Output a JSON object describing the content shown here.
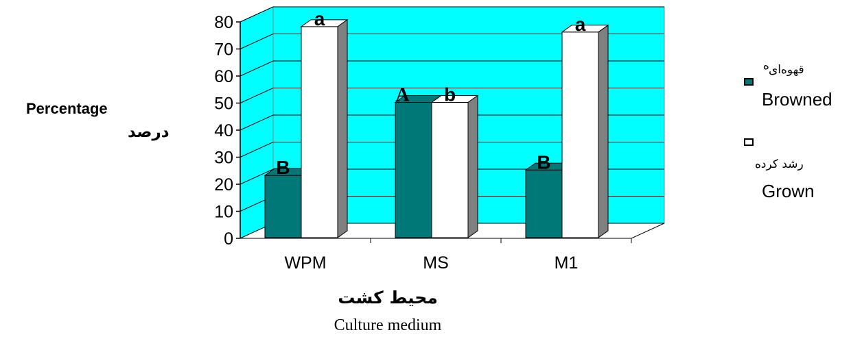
{
  "chart_data": {
    "type": "bar",
    "categories": [
      "WPM",
      "MS",
      "M1"
    ],
    "series": [
      {
        "name": "Browned",
        "name_fa": "قهوه‌ای",
        "color": "#007878",
        "values": [
          23,
          50,
          25
        ],
        "labels": [
          "B",
          "A",
          "B"
        ]
      },
      {
        "name": "Grown",
        "name_fa": "رشد کرده",
        "color": "#ffffff",
        "values": [
          78,
          50,
          76
        ],
        "labels": [
          "a",
          "b",
          "a"
        ]
      }
    ],
    "ylim": [
      0,
      80
    ],
    "yticks": [
      0,
      10,
      20,
      30,
      40,
      50,
      60,
      70,
      80
    ],
    "ylabel": "Percentage",
    "ylabel_fa": "درصد",
    "xlabel": "Culture medium",
    "xlabel_fa": "محیط کشت",
    "wall_color": "#00ffff",
    "floor_color": "#ffffff",
    "side_color": "#808080",
    "grid": true,
    "legend": "right",
    "legend_marker": "ه"
  }
}
